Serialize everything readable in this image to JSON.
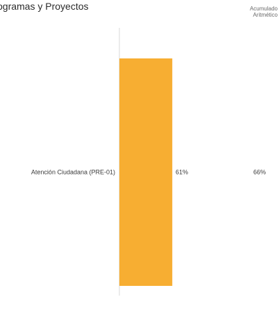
{
  "header": {
    "title": "ogramas y Proyectos",
    "column_heading_line1": "Acumulado",
    "column_heading_line2": "Aritmético"
  },
  "colors": {
    "bar": "#f7ae32",
    "axis": "#d9d9d9"
  },
  "chart_data": {
    "type": "bar",
    "orientation": "horizontal",
    "categories": [
      "Atención Ciudadana (PRE-01)"
    ],
    "values": [
      61
    ],
    "value_labels": [
      "61%"
    ],
    "secondary_values": [
      66
    ],
    "secondary_labels": [
      "66%"
    ],
    "xlim": [
      0,
      100
    ],
    "grid": false
  }
}
